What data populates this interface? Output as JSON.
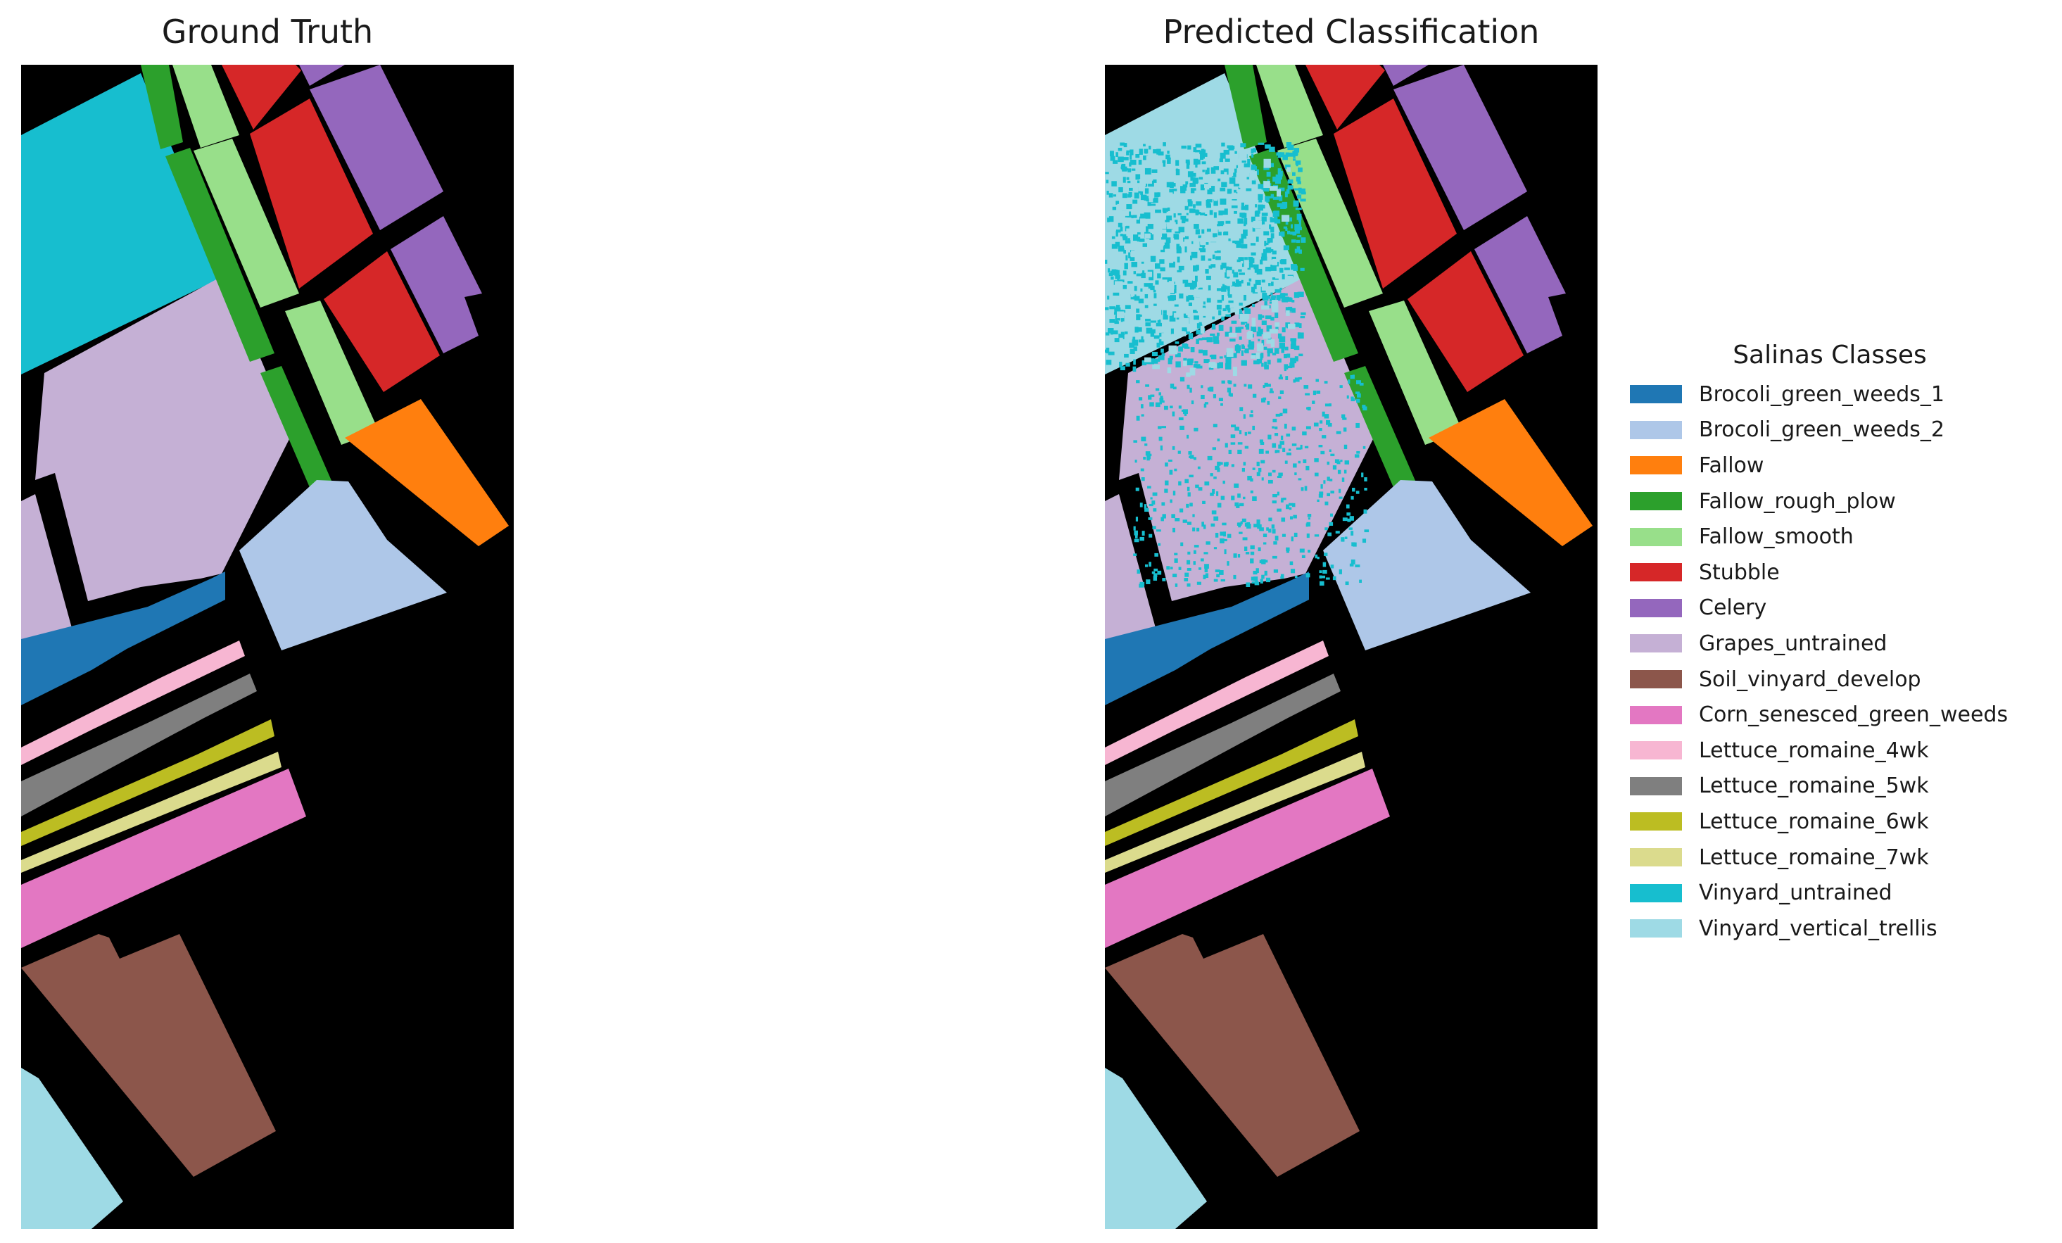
{
  "panels": {
    "left_title": "Ground Truth",
    "right_title": "Predicted Classification"
  },
  "legend": {
    "title": "Salinas Classes",
    "items": [
      {
        "label": "Brocoli_green_weeds_1",
        "color": "#1f77b4"
      },
      {
        "label": "Brocoli_green_weeds_2",
        "color": "#aec7e8"
      },
      {
        "label": "Fallow",
        "color": "#ff7f0e"
      },
      {
        "label": "Fallow_rough_plow",
        "color": "#2ca02c"
      },
      {
        "label": "Fallow_smooth",
        "color": "#98df8a"
      },
      {
        "label": "Stubble",
        "color": "#d62728"
      },
      {
        "label": "Celery",
        "color": "#9467bd"
      },
      {
        "label": "Grapes_untrained",
        "color": "#c5b0d5"
      },
      {
        "label": "Soil_vinyard_develop",
        "color": "#8c564b"
      },
      {
        "label": "Corn_senesced_green_weeds",
        "color": "#e377c2"
      },
      {
        "label": "Lettuce_romaine_4wk",
        "color": "#f7b6d2"
      },
      {
        "label": "Lettuce_romaine_5wk",
        "color": "#7f7f7f"
      },
      {
        "label": "Lettuce_romaine_6wk",
        "color": "#bcbd22"
      },
      {
        "label": "Lettuce_romaine_7wk",
        "color": "#dbdb8d"
      },
      {
        "label": "Vinyard_untrained",
        "color": "#17becf"
      },
      {
        "label": "Vinyard_vertical_trellis",
        "color": "#9edae5"
      }
    ]
  }
}
